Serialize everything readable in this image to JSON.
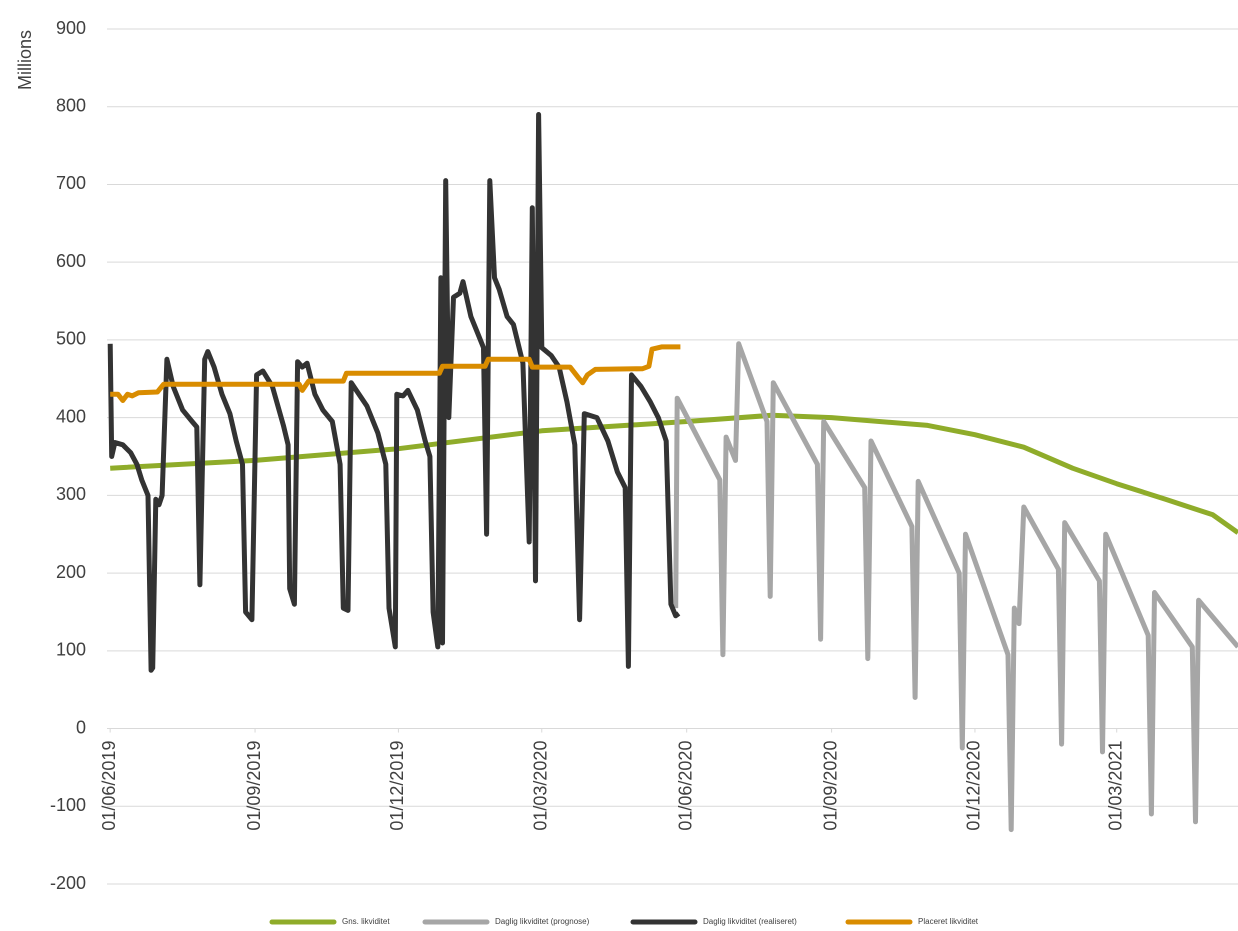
{
  "chart_data": {
    "type": "line",
    "y_label": "Millions",
    "ylim": [
      -200,
      900
    ],
    "yticks": [
      -200,
      -100,
      0,
      100,
      200,
      300,
      400,
      500,
      600,
      700,
      800,
      900
    ],
    "grid": true,
    "xlim": [
      "2019-05-30",
      "2021-05-17"
    ],
    "xticks": [
      {
        "value": "2019-06-01",
        "label": "01/06/2019"
      },
      {
        "value": "2019-09-01",
        "label": "01/09/2019"
      },
      {
        "value": "2019-12-01",
        "label": "01/12/2019"
      },
      {
        "value": "2020-03-01",
        "label": "01/03/2020"
      },
      {
        "value": "2020-06-01",
        "label": "01/06/2020"
      },
      {
        "value": "2020-09-01",
        "label": "01/09/2020"
      },
      {
        "value": "2020-12-01",
        "label": "01/12/2020"
      },
      {
        "value": "2021-03-01",
        "label": "01/03/2021"
      }
    ],
    "legend": "bottom",
    "series": [
      {
        "name": "Gns. likviditet",
        "color": "#8fac2a",
        "x": [
          "2019-06-01",
          "2019-09-01",
          "2019-12-01",
          "2020-03-01",
          "2020-06-01",
          "2020-07-25",
          "2020-09-01",
          "2020-11-01",
          "2020-12-01",
          "2021-01-01",
          "2021-02-01",
          "2021-03-01",
          "2021-04-01",
          "2021-05-01",
          "2021-05-17"
        ],
        "values": [
          335,
          345,
          360,
          383,
          395,
          403,
          400,
          390,
          378,
          362,
          335,
          315,
          295,
          275,
          252
        ]
      },
      {
        "name": "Daglig likviditet (prognose)",
        "color": "#a6a6a6",
        "x": [
          "2020-05-25",
          "2020-05-26",
          "2020-06-22",
          "2020-06-24",
          "2020-06-26",
          "2020-07-02",
          "2020-07-04",
          "2020-07-22",
          "2020-07-24",
          "2020-07-26",
          "2020-08-23",
          "2020-08-25",
          "2020-08-27",
          "2020-09-22",
          "2020-09-24",
          "2020-09-26",
          "2020-10-22",
          "2020-10-24",
          "2020-10-26",
          "2020-11-21",
          "2020-11-23",
          "2020-11-25",
          "2020-12-22",
          "2020-12-24",
          "2020-12-26",
          "2020-12-29",
          "2021-01-01",
          "2021-01-23",
          "2021-01-25",
          "2021-01-27",
          "2021-02-18",
          "2021-02-20",
          "2021-02-22",
          "2021-03-21",
          "2021-03-23",
          "2021-03-25",
          "2021-04-18",
          "2021-04-20",
          "2021-04-22",
          "2021-05-17"
        ],
        "values": [
          155,
          425,
          320,
          95,
          375,
          345,
          495,
          395,
          170,
          445,
          340,
          115,
          395,
          310,
          90,
          370,
          260,
          40,
          318,
          200,
          -25,
          250,
          95,
          -130,
          155,
          135,
          285,
          205,
          -20,
          265,
          190,
          -30,
          250,
          120,
          -110,
          175,
          105,
          -120,
          165,
          105
        ]
      },
      {
        "name": "Daglig likviditet (realiseret)",
        "color": "#333333",
        "x": [
          "2019-06-01",
          "2019-06-02",
          "2019-06-04",
          "2019-06-09",
          "2019-06-14",
          "2019-06-18",
          "2019-06-21",
          "2019-06-25",
          "2019-06-27",
          "2019-06-28",
          "2019-06-30",
          "2019-07-02",
          "2019-07-04",
          "2019-07-07",
          "2019-07-11",
          "2019-07-17",
          "2019-07-23",
          "2019-07-26",
          "2019-07-28",
          "2019-07-31",
          "2019-08-02",
          "2019-08-06",
          "2019-08-11",
          "2019-08-16",
          "2019-08-20",
          "2019-08-24",
          "2019-08-26",
          "2019-08-30",
          "2019-09-02",
          "2019-09-06",
          "2019-09-12",
          "2019-09-19",
          "2019-09-22",
          "2019-09-23",
          "2019-09-26",
          "2019-09-28",
          "2019-10-01",
          "2019-10-04",
          "2019-10-09",
          "2019-10-14",
          "2019-10-20",
          "2019-10-25",
          "2019-10-27",
          "2019-10-30",
          "2019-11-01",
          "2019-11-06",
          "2019-11-11",
          "2019-11-18",
          "2019-11-23",
          "2019-11-25",
          "2019-11-29",
          "2019-11-30",
          "2019-12-04",
          "2019-12-07",
          "2019-12-13",
          "2019-12-18",
          "2019-12-21",
          "2019-12-23",
          "2019-12-26",
          "2019-12-28",
          "2019-12-29",
          "2019-12-31",
          "2020-01-02",
          "2020-01-05",
          "2020-01-09",
          "2020-01-11",
          "2020-01-16",
          "2020-01-20",
          "2020-01-24",
          "2020-01-26",
          "2020-01-28",
          "2020-01-31",
          "2020-02-03",
          "2020-02-08",
          "2020-02-12",
          "2020-02-18",
          "2020-02-22",
          "2020-02-24",
          "2020-02-26",
          "2020-02-28",
          "2020-03-01",
          "2020-03-07",
          "2020-03-12",
          "2020-03-17",
          "2020-03-22",
          "2020-03-25",
          "2020-03-28",
          "2020-04-05",
          "2020-04-12",
          "2020-04-18",
          "2020-04-23",
          "2020-04-25",
          "2020-04-27",
          "2020-05-03",
          "2020-05-09",
          "2020-05-14",
          "2020-05-19",
          "2020-05-22",
          "2020-05-25",
          "2020-05-27"
        ],
        "values": [
          495,
          350,
          368,
          365,
          355,
          340,
          320,
          300,
          75,
          78,
          295,
          288,
          300,
          475,
          440,
          410,
          395,
          388,
          185,
          475,
          485,
          465,
          430,
          405,
          370,
          340,
          150,
          140,
          455,
          460,
          440,
          390,
          365,
          180,
          160,
          472,
          465,
          470,
          430,
          410,
          395,
          340,
          155,
          152,
          445,
          430,
          415,
          380,
          340,
          155,
          105,
          430,
          428,
          435,
          410,
          370,
          350,
          150,
          105,
          580,
          110,
          705,
          400,
          555,
          560,
          575,
          530,
          510,
          490,
          250,
          705,
          580,
          565,
          530,
          520,
          470,
          240,
          670,
          190,
          790,
          490,
          480,
          465,
          420,
          365,
          140,
          405,
          400,
          370,
          330,
          310,
          80,
          455,
          440,
          420,
          400,
          370,
          160,
          145,
          148
        ]
      },
      {
        "name": "Placeret likviditet",
        "color": "#d98c00",
        "x": [
          "2019-06-01",
          "2019-06-06",
          "2019-06-09",
          "2019-06-12",
          "2019-06-15",
          "2019-06-19",
          "2019-07-01",
          "2019-07-05",
          "2019-09-29",
          "2019-10-01",
          "2019-10-05",
          "2019-10-27",
          "2019-10-29",
          "2019-12-27",
          "2019-12-29",
          "2020-01-25",
          "2020-01-27",
          "2020-02-22",
          "2020-02-24",
          "2020-03-19",
          "2020-03-24",
          "2020-03-27",
          "2020-03-30",
          "2020-04-04",
          "2020-05-04",
          "2020-05-08",
          "2020-05-10",
          "2020-05-16",
          "2020-05-28"
        ],
        "values": [
          430,
          430,
          422,
          430,
          428,
          432,
          433,
          443,
          443,
          435,
          447,
          447,
          457,
          457,
          466,
          466,
          475,
          475,
          465,
          465,
          452,
          445,
          455,
          462,
          463,
          466,
          488,
          491,
          491
        ]
      }
    ]
  }
}
